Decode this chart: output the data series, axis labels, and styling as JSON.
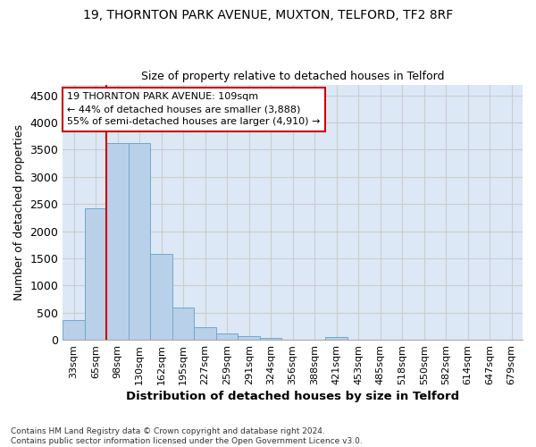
{
  "title1": "19, THORNTON PARK AVENUE, MUXTON, TELFORD, TF2 8RF",
  "title2": "Size of property relative to detached houses in Telford",
  "xlabel": "Distribution of detached houses by size in Telford",
  "ylabel": "Number of detached properties",
  "categories": [
    "33sqm",
    "65sqm",
    "98sqm",
    "130sqm",
    "162sqm",
    "195sqm",
    "227sqm",
    "259sqm",
    "291sqm",
    "324sqm",
    "356sqm",
    "388sqm",
    "421sqm",
    "453sqm",
    "485sqm",
    "518sqm",
    "550sqm",
    "582sqm",
    "614sqm",
    "647sqm",
    "679sqm"
  ],
  "values": [
    370,
    2420,
    3620,
    3620,
    1580,
    590,
    230,
    110,
    65,
    40,
    0,
    0,
    55,
    0,
    0,
    0,
    0,
    0,
    0,
    0,
    0
  ],
  "bar_color": "#b8d0e8",
  "bar_edge_color": "#6fa8d0",
  "ylim": [
    0,
    4700
  ],
  "yticks": [
    0,
    500,
    1000,
    1500,
    2000,
    2500,
    3000,
    3500,
    4000,
    4500
  ],
  "property_size_bin_index": 2,
  "annotation_title": "19 THORNTON PARK AVENUE: 109sqm",
  "annotation_line1": "← 44% of detached houses are smaller (3,888)",
  "annotation_line2": "55% of semi-detached houses are larger (4,910) →",
  "annotation_box_color": "#ffffff",
  "annotation_box_edge_color": "#cc0000",
  "vline_color": "#cc0000",
  "grid_color": "#cccccc",
  "plot_bg_color": "#dce8f5",
  "fig_bg_color": "#ffffff",
  "footer_line1": "Contains HM Land Registry data © Crown copyright and database right 2024.",
  "footer_line2": "Contains public sector information licensed under the Open Government Licence v3.0."
}
